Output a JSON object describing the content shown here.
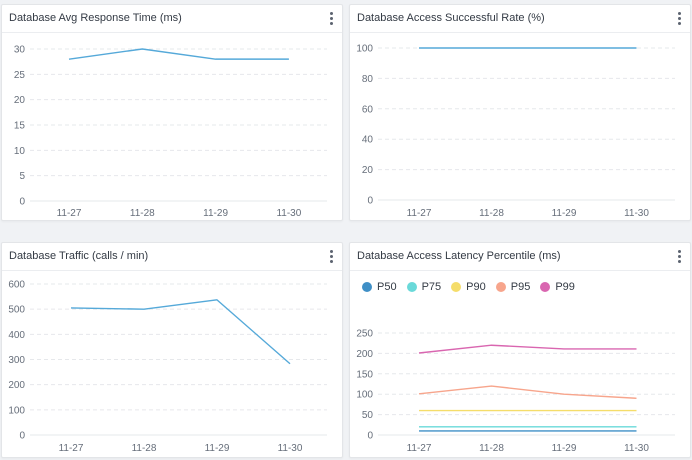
{
  "colors": {
    "line": "#55a9d9",
    "grid": "#e6e8eb",
    "axis_text": "#666e7a",
    "title": "#333a44"
  },
  "panels": [
    {
      "title": "Database Avg Response Time (ms)",
      "menu_icon": "more-vertical-icon",
      "chart_data": {
        "type": "line",
        "categories": [
          "11-27",
          "11-28",
          "11-29",
          "11-30"
        ],
        "series": [
          {
            "values": [
              28,
              30,
              28,
              28
            ],
            "color": "#55a9d9"
          }
        ],
        "ylim": [
          0,
          30
        ],
        "yticks": [
          0,
          5,
          10,
          15,
          20,
          25,
          30
        ],
        "grid": true
      }
    },
    {
      "title": "Database Access Successful Rate (%)",
      "menu_icon": "more-vertical-icon",
      "chart_data": {
        "type": "line",
        "categories": [
          "11-27",
          "11-28",
          "11-29",
          "11-30"
        ],
        "series": [
          {
            "values": [
              100,
              100,
              100,
              100
            ],
            "color": "#55a9d9"
          }
        ],
        "ylim": [
          0,
          100
        ],
        "yticks": [
          0,
          20,
          40,
          60,
          80,
          100
        ],
        "grid": true
      }
    },
    {
      "title": "Database Traffic (calls / min)",
      "menu_icon": "more-vertical-icon",
      "chart_data": {
        "type": "line",
        "categories": [
          "11-27",
          "11-28",
          "11-29",
          "11-30"
        ],
        "series": [
          {
            "values": [
              505,
              500,
              537,
              283
            ],
            "color": "#55a9d9"
          }
        ],
        "ylim": [
          0,
          600
        ],
        "yticks": [
          0,
          100,
          200,
          300,
          400,
          500,
          600
        ],
        "grid": true
      }
    },
    {
      "title": "Database Access Latency Percentile (ms)",
      "menu_icon": "more-vertical-icon",
      "chart_data": {
        "type": "line",
        "categories": [
          "11-27",
          "11-28",
          "11-29",
          "11-30"
        ],
        "series": [
          {
            "name": "P50",
            "values": [
              10,
              10,
              10,
              10
            ],
            "color": "#3f8fc6"
          },
          {
            "name": "P75",
            "values": [
              20,
              20,
              20,
              20
            ],
            "color": "#6ad9d9"
          },
          {
            "name": "P90",
            "values": [
              60,
              60,
              60,
              60
            ],
            "color": "#f5dd6a"
          },
          {
            "name": "P95",
            "values": [
              101,
              120,
              100,
              90
            ],
            "color": "#f7a58c"
          },
          {
            "name": "P99",
            "values": [
              201,
              220,
              211,
              211
            ],
            "color": "#d966b0"
          }
        ],
        "ylim": [
          0,
          250
        ],
        "yticks": [
          0,
          50,
          100,
          150,
          200,
          250
        ],
        "grid": true,
        "legend": "top-left"
      }
    }
  ]
}
